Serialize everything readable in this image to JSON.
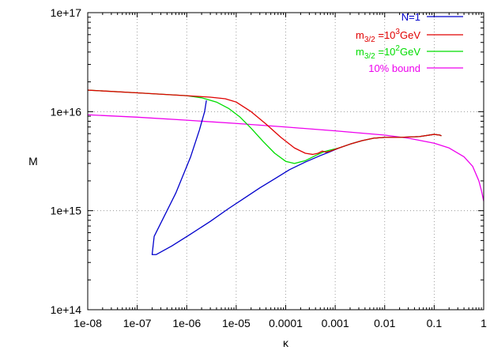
{
  "chart_data": {
    "type": "line",
    "title": "",
    "xlabel": "κ",
    "ylabel": "M",
    "xscale": "log",
    "yscale": "log",
    "xlim": [
      1e-08,
      1
    ],
    "ylim": [
      100000000000000.0,
      1e+17
    ],
    "grid": true,
    "grid_style": "dotted",
    "legend_position": "top-right",
    "x_tick_labels": [
      "1e-08",
      "1e-07",
      "1e-06",
      "1e-05",
      "0.0001",
      "0.001",
      "0.01",
      "0.1",
      "1"
    ],
    "y_tick_labels": [
      "1e+14",
      "1e+15",
      "1e+16",
      "1e+17"
    ],
    "series": [
      {
        "name": "N=1",
        "legend": {
          "main": "N=1"
        },
        "color": "#0000cc",
        "x": [
          2.5e-06,
          2.3e-06,
          1.8e-06,
          1.2e-06,
          6e-07,
          2.2e-07,
          2e-07,
          2.4e-07,
          5e-07,
          1.2e-06,
          3e-06,
          7e-06,
          1.5e-05,
          3e-05,
          6e-05,
          0.00012,
          0.00025,
          0.0005,
          0.0008,
          0.0012,
          0.002,
          0.0035,
          0.006,
          0.01,
          0.02,
          0.05,
          0.1,
          0.13,
          0.14
        ],
        "y": [
          1.3e+16,
          1e+16,
          6500000000000000.0,
          3500000000000000.0,
          1500000000000000.0,
          550000000000000.0,
          360000000000000.0,
          360000000000000.0,
          440000000000000.0,
          580000000000000.0,
          780000000000000.0,
          1050000000000000.0,
          1350000000000000.0,
          1700000000000000.0,
          2100000000000000.0,
          2600000000000000.0,
          3100000000000000.0,
          3600000000000000.0,
          3950000000000000.0,
          4300000000000000.0,
          4700000000000000.0,
          5100000000000000.0,
          5400000000000000.0,
          5500000000000000.0,
          5500000000000000.0,
          5600000000000000.0,
          5900000000000000.0,
          5800000000000000.0,
          5700000000000000.0
        ]
      },
      {
        "name": "m3/2 =10^3GeV",
        "legend": {
          "main": "m",
          "sub": "3/2",
          "mid": " =10",
          "sup": "3",
          "post": "GeV"
        },
        "color": "#e00000",
        "x": [
          1e-08,
          1e-07,
          1e-06,
          3e-06,
          6e-06,
          1e-05,
          2e-05,
          4e-05,
          8e-05,
          0.00015,
          0.00025,
          0.00035,
          0.00045,
          0.00055,
          0.00065,
          0.0008,
          0.0012,
          0.002,
          0.0035,
          0.006,
          0.01,
          0.02,
          0.05,
          0.1,
          0.13,
          0.14
        ],
        "y": [
          1.65e+16,
          1.55e+16,
          1.45e+16,
          1.4e+16,
          1.35e+16,
          1.25e+16,
          1e+16,
          7500000000000000.0,
          5500000000000000.0,
          4300000000000000.0,
          3800000000000000.0,
          3700000000000000.0,
          3800000000000000.0,
          4000000000000000.0,
          3900000000000000.0,
          4000000000000000.0,
          4300000000000000.0,
          4700000000000000.0,
          5100000000000000.0,
          5400000000000000.0,
          5500000000000000.0,
          5500000000000000.0,
          5600000000000000.0,
          5900000000000000.0,
          5800000000000000.0,
          5700000000000000.0
        ]
      },
      {
        "name": "m3/2 =10^2GeV",
        "legend": {
          "main": "m",
          "sub": "3/2",
          "mid": " =10",
          "sup": "2",
          "post": "GeV"
        },
        "color": "#00dd00",
        "x": [
          1e-08,
          1e-07,
          1e-06,
          2e-06,
          4e-06,
          7e-06,
          1.2e-05,
          2e-05,
          3.5e-05,
          6e-05,
          0.0001,
          0.00015,
          0.00025,
          0.0004,
          0.0006,
          0.0008,
          0.0012,
          0.002,
          0.0035,
          0.006,
          0.01,
          0.02,
          0.05,
          0.1,
          0.13,
          0.14
        ],
        "y": [
          1.65e+16,
          1.55e+16,
          1.45e+16,
          1.38e+16,
          1.25e+16,
          1.08e+16,
          8800000000000000.0,
          6800000000000000.0,
          5000000000000000.0,
          3800000000000000.0,
          3150000000000000.0,
          3000000000000000.0,
          3200000000000000.0,
          3600000000000000.0,
          3950000000000000.0,
          4100000000000000.0,
          4300000000000000.0,
          4700000000000000.0,
          5100000000000000.0,
          5400000000000000.0,
          5500000000000000.0,
          5500000000000000.0,
          5600000000000000.0,
          5900000000000000.0,
          5800000000000000.0,
          5700000000000000.0
        ]
      },
      {
        "name": "10% bound",
        "legend": {
          "main": "10% bound"
        },
        "color": "#ee00ee",
        "x": [
          1e-08,
          1e-07,
          1e-06,
          1e-05,
          0.0001,
          0.001,
          0.01,
          0.03,
          0.1,
          0.2,
          0.4,
          0.6,
          0.8,
          0.9,
          1.0
        ],
        "y": [
          9300000000000000.0,
          8800000000000000.0,
          8200000000000000.0,
          7600000000000000.0,
          7000000000000000.0,
          6400000000000000.0,
          5800000000000000.0,
          5400000000000000.0,
          4800000000000000.0,
          4300000000000000.0,
          3500000000000000.0,
          2800000000000000.0,
          2000000000000000.0,
          1600000000000000.0,
          1250000000000000.0
        ]
      }
    ]
  }
}
